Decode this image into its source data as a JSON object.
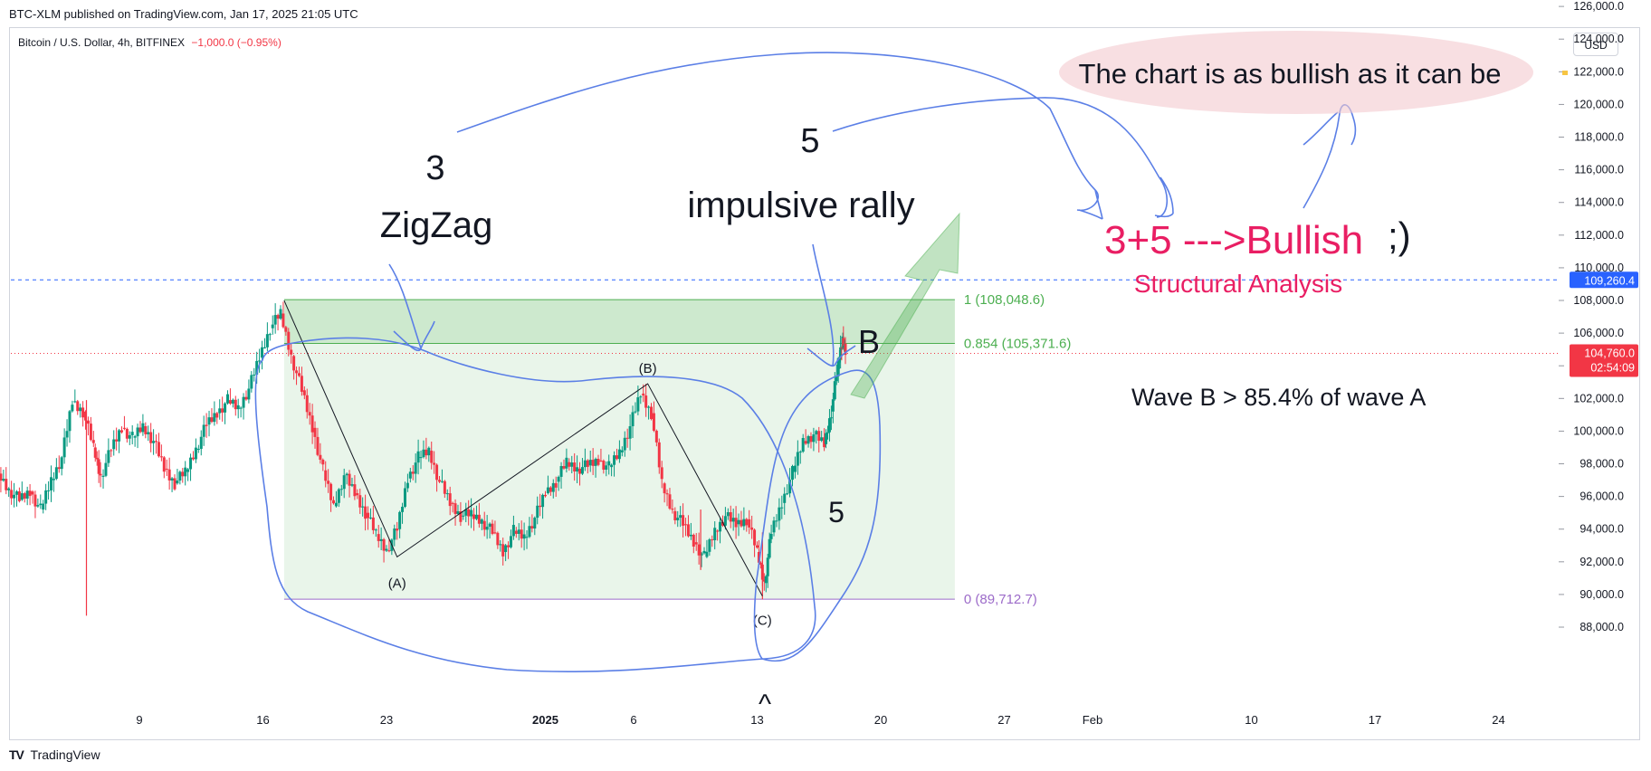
{
  "header": {
    "published": "BTC-XLM published on TradingView.com, Jan 17, 2025 21:05 UTC",
    "symbol": "Bitcoin / U.S. Dollar, 4h, BITFINEX",
    "change": "−1,000.0 (−0.95%)",
    "currency_button": "USD"
  },
  "footer": {
    "brand_logo": "TV",
    "brand": "TradingView"
  },
  "colors": {
    "up": "#089981",
    "down": "#f23645",
    "accent": "#2962ff",
    "annotation_pink": "#e91e63",
    "fib_purple": "#9c6bc9",
    "fib_green": "#4caf50"
  },
  "chart_data": {
    "type": "candlestick",
    "timeframe": "4h",
    "ylim": [
      87000,
      127000
    ],
    "y_ticks": [
      88000,
      90000,
      92000,
      94000,
      96000,
      98000,
      100000,
      102000,
      104000,
      106000,
      108000,
      110000,
      112000,
      114000,
      116000,
      118000,
      120000,
      122000,
      124000,
      126000
    ],
    "y_tick_labels": [
      "88,000.0",
      "90,000.0",
      "92,000.0",
      "94,000.0",
      "96,000.0",
      "98,000.0",
      "100,000.0",
      "102,000.0",
      "104,000.0",
      "106,000.0",
      "108,000.0",
      "110,000.0",
      "112,000.0",
      "114,000.0",
      "116,000.0",
      "118,000.0",
      "120,000.0",
      "122,000.0",
      "124,000.0",
      "126,000.0"
    ],
    "x_ticks": [
      {
        "day": 9,
        "label": "9"
      },
      {
        "day": 16,
        "label": "16"
      },
      {
        "day": 23,
        "label": "23"
      },
      {
        "day": 32,
        "label": "2025"
      },
      {
        "day": 37,
        "label": "6"
      },
      {
        "day": 44,
        "label": "13"
      },
      {
        "day": 51,
        "label": "20"
      },
      {
        "day": 58,
        "label": "27"
      },
      {
        "day": 63,
        "label": "Feb"
      },
      {
        "day": 72,
        "label": "10"
      },
      {
        "day": 79,
        "label": "17"
      },
      {
        "day": 86,
        "label": "24"
      }
    ],
    "price_path": [
      {
        "day": 1.0,
        "price": 97400
      },
      {
        "day": 1.6,
        "price": 96400
      },
      {
        "day": 2.2,
        "price": 95800
      },
      {
        "day": 2.8,
        "price": 96300
      },
      {
        "day": 3.4,
        "price": 95200
      },
      {
        "day": 4.0,
        "price": 97000
      },
      {
        "day": 4.6,
        "price": 98400
      },
      {
        "day": 5.2,
        "price": 101800
      },
      {
        "day": 5.8,
        "price": 101200
      },
      {
        "day": 6.4,
        "price": 99000
      },
      {
        "day": 6.8,
        "price": 97200
      },
      {
        "day": 7.4,
        "price": 98900
      },
      {
        "day": 8.0,
        "price": 100200
      },
      {
        "day": 8.6,
        "price": 99600
      },
      {
        "day": 9.2,
        "price": 100300
      },
      {
        "day": 9.8,
        "price": 99400
      },
      {
        "day": 10.4,
        "price": 97700
      },
      {
        "day": 11.0,
        "price": 96800
      },
      {
        "day": 11.6,
        "price": 97500
      },
      {
        "day": 12.2,
        "price": 98900
      },
      {
        "day": 12.8,
        "price": 100400
      },
      {
        "day": 13.4,
        "price": 101100
      },
      {
        "day": 14.0,
        "price": 101900
      },
      {
        "day": 14.6,
        "price": 101400
      },
      {
        "day": 15.2,
        "price": 102600
      },
      {
        "day": 15.8,
        "price": 104500
      },
      {
        "day": 16.4,
        "price": 106300
      },
      {
        "day": 17.0,
        "price": 107200
      },
      {
        "day": 17.6,
        "price": 104600
      },
      {
        "day": 18.2,
        "price": 102500
      },
      {
        "day": 18.8,
        "price": 100200
      },
      {
        "day": 19.4,
        "price": 97600
      },
      {
        "day": 20.0,
        "price": 95400
      },
      {
        "day": 20.6,
        "price": 97300
      },
      {
        "day": 21.2,
        "price": 96200
      },
      {
        "day": 21.8,
        "price": 95000
      },
      {
        "day": 22.4,
        "price": 93700
      },
      {
        "day": 23.0,
        "price": 92700
      },
      {
        "day": 23.6,
        "price": 94000
      },
      {
        "day": 24.2,
        "price": 97100
      },
      {
        "day": 24.8,
        "price": 98400
      },
      {
        "day": 25.4,
        "price": 98800
      },
      {
        "day": 26.0,
        "price": 96900
      },
      {
        "day": 26.6,
        "price": 95600
      },
      {
        "day": 27.2,
        "price": 94800
      },
      {
        "day": 27.8,
        "price": 94900
      },
      {
        "day": 28.4,
        "price": 94500
      },
      {
        "day": 29.0,
        "price": 93800
      },
      {
        "day": 29.6,
        "price": 92600
      },
      {
        "day": 30.2,
        "price": 93900
      },
      {
        "day": 30.8,
        "price": 93500
      },
      {
        "day": 31.4,
        "price": 94700
      },
      {
        "day": 32.0,
        "price": 96200
      },
      {
        "day": 32.6,
        "price": 96900
      },
      {
        "day": 33.2,
        "price": 98100
      },
      {
        "day": 33.8,
        "price": 97700
      },
      {
        "day": 34.4,
        "price": 97900
      },
      {
        "day": 35.0,
        "price": 98200
      },
      {
        "day": 35.6,
        "price": 97800
      },
      {
        "day": 36.2,
        "price": 98700
      },
      {
        "day": 36.8,
        "price": 100300
      },
      {
        "day": 37.4,
        "price": 102300
      },
      {
        "day": 38.0,
        "price": 101100
      },
      {
        "day": 38.6,
        "price": 96800
      },
      {
        "day": 39.2,
        "price": 95100
      },
      {
        "day": 39.8,
        "price": 94300
      },
      {
        "day": 40.4,
        "price": 93200
      },
      {
        "day": 41.0,
        "price": 92300
      },
      {
        "day": 41.6,
        "price": 93900
      },
      {
        "day": 42.2,
        "price": 94800
      },
      {
        "day": 42.8,
        "price": 94300
      },
      {
        "day": 43.4,
        "price": 94600
      },
      {
        "day": 44.0,
        "price": 92600
      },
      {
        "day": 44.4,
        "price": 90700
      },
      {
        "day": 44.8,
        "price": 93800
      },
      {
        "day": 45.4,
        "price": 95600
      },
      {
        "day": 46.0,
        "price": 97500
      },
      {
        "day": 46.6,
        "price": 99400
      },
      {
        "day": 47.2,
        "price": 99800
      },
      {
        "day": 47.8,
        "price": 99200
      },
      {
        "day": 48.2,
        "price": 101200
      },
      {
        "day": 48.6,
        "price": 104200
      },
      {
        "day": 48.85,
        "price": 105700
      },
      {
        "day": 49.0,
        "price": 104760
      }
    ],
    "wicks": [
      {
        "day": 6.0,
        "low": 88700,
        "high": 101900,
        "color": "down"
      },
      {
        "day": 40.8,
        "low": 91500,
        "high": 95200,
        "color": "down"
      },
      {
        "day": 44.3,
        "low": 89700,
        "high": 93800,
        "color": "down"
      }
    ],
    "last_price": {
      "value": 104760,
      "label": "104,760.0",
      "countdown": "02:54:09"
    },
    "horizontal_line": {
      "value": 109260.4,
      "label": "109,260.4"
    },
    "fib_levels": [
      {
        "ratio_label": "1 (108,048.6)",
        "value": 108048.6
      },
      {
        "ratio_label": "0.854 (105,371.6)",
        "value": 105371.6
      },
      {
        "ratio_label": "0 (89,712.7)",
        "value": 89712.7
      }
    ],
    "fib_box": {
      "start_day": 17.2,
      "end_day": 55.2
    },
    "wave_points": [
      {
        "label": "",
        "day": 17.2,
        "price": 108000
      },
      {
        "label": "(A)",
        "day": 23.6,
        "price": 92300
      },
      {
        "label": "(B)",
        "day": 37.8,
        "price": 102900
      },
      {
        "label": "(C)",
        "day": 44.3,
        "price": 89900
      }
    ],
    "annotations": {
      "three": "3",
      "zigzag": "ZigZag",
      "five_top": "5",
      "impulsive": "impulsive rally",
      "b_label": "B",
      "wave_b_note": "Wave B > 85.4% of wave A",
      "five_small": "5",
      "caret": "^",
      "bullish": "3+5 --->Bullish",
      "wink": ";)",
      "structural": "Structural Analysis",
      "bubble": "The chart is as bullish as it can be"
    }
  }
}
